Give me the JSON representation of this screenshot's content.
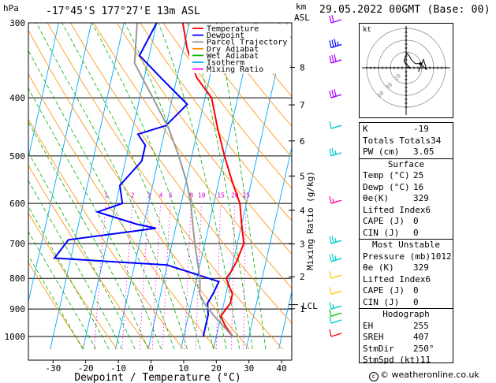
{
  "header": {
    "station": "-17°45'S 177°27'E 13m ASL",
    "datetime": "29.05.2022 00GMT (Base: 00)",
    "p_unit": "hPa",
    "km_unit_line1": "km",
    "km_unit_line2": "ASL"
  },
  "axes": {
    "xlabel": "Dewpoint / Temperature (°C)",
    "ylabel": "Mixing Ratio (g/kg)",
    "x_ticks": [
      -30,
      -20,
      -10,
      0,
      10,
      20,
      30,
      40
    ],
    "p_ticks": [
      300,
      400,
      500,
      600,
      700,
      800,
      900,
      1000
    ],
    "km_ticks": [
      {
        "km": 8,
        "p": 356
      },
      {
        "km": 7,
        "p": 411
      },
      {
        "km": 6,
        "p": 472
      },
      {
        "km": 5,
        "p": 540
      },
      {
        "km": 4,
        "p": 616
      },
      {
        "km": 3,
        "p": 701
      },
      {
        "km": 2,
        "p": 795
      },
      {
        "km": 1,
        "p": 899
      }
    ],
    "lcl_label": "LCL",
    "lcl_p": 885,
    "mixing_ratio_labels": [
      "1",
      "2",
      "3",
      "4",
      "5",
      "8",
      "10",
      "15",
      "20",
      "25"
    ],
    "mixing_ratio_values": [
      1,
      2,
      3,
      4,
      5,
      8,
      10,
      15,
      20,
      25
    ],
    "label_p": 590
  },
  "legend": [
    {
      "label": "Temperature",
      "color": "#ff0000"
    },
    {
      "label": "Dewpoint",
      "color": "#0000ff"
    },
    {
      "label": "Parcel Trajectory",
      "color": "#999999"
    },
    {
      "label": "Dry Adiabat",
      "color": "#ff8c00"
    },
    {
      "label": "Wet Adiabat",
      "color": "#00b000"
    },
    {
      "label": "Isotherm",
      "color": "#00aaff"
    },
    {
      "label": "Mixing Ratio",
      "color": "#ff00ff"
    }
  ],
  "chart_data": {
    "type": "line",
    "title": "Skew-T log-P diagram",
    "xlim": [
      -35,
      42
    ],
    "ylim": [
      1050,
      300
    ],
    "series": [
      {
        "name": "Temperature",
        "color": "#ff0000",
        "points": [
          [
            25,
            1000
          ],
          [
            22,
            960
          ],
          [
            20,
            925
          ],
          [
            22,
            880
          ],
          [
            22,
            850
          ],
          [
            19,
            800
          ],
          [
            20,
            780
          ],
          [
            21,
            750
          ],
          [
            22,
            700
          ],
          [
            20,
            650
          ],
          [
            18,
            600
          ],
          [
            14,
            550
          ],
          [
            10,
            500
          ],
          [
            6,
            450
          ],
          [
            2,
            400
          ],
          [
            -4,
            370
          ],
          [
            -9,
            330
          ],
          [
            -12,
            300
          ]
        ]
      },
      {
        "name": "Dewpoint",
        "color": "#0000ff",
        "points": [
          [
            16,
            1000
          ],
          [
            16,
            960
          ],
          [
            16,
            920
          ],
          [
            15,
            880
          ],
          [
            16,
            850
          ],
          [
            17,
            810
          ],
          [
            0,
            760
          ],
          [
            -35,
            740
          ],
          [
            -32,
            690
          ],
          [
            -6,
            660
          ],
          [
            -12,
            650
          ],
          [
            -25,
            620
          ],
          [
            -18,
            600
          ],
          [
            -20,
            560
          ],
          [
            -15,
            510
          ],
          [
            -15,
            480
          ],
          [
            -18,
            460
          ],
          [
            -10,
            445
          ],
          [
            -5,
            410
          ],
          [
            -15,
            370
          ],
          [
            -23,
            340
          ],
          [
            -20,
            300
          ]
        ]
      },
      {
        "name": "Parcel Trajectory",
        "color": "#999999",
        "points": [
          [
            25,
            1000
          ],
          [
            18,
            925
          ],
          [
            14,
            880
          ],
          [
            12,
            850
          ],
          [
            11,
            800
          ],
          [
            9,
            750
          ],
          [
            7,
            700
          ],
          [
            5,
            650
          ],
          [
            3,
            600
          ],
          [
            0,
            550
          ],
          [
            -4,
            500
          ],
          [
            -9,
            450
          ],
          [
            -16,
            400
          ],
          [
            -24,
            350
          ],
          [
            -26,
            300
          ]
        ]
      }
    ]
  },
  "wind_barbs": [
    {
      "p": 1000,
      "color": "#ff0000",
      "speed": 10
    },
    {
      "p": 950,
      "color": "#00cccc",
      "speed": 10
    },
    {
      "p": 925,
      "color": "#00cc00",
      "speed": 10
    },
    {
      "p": 900,
      "color": "#00cccc",
      "speed": 5
    },
    {
      "p": 850,
      "color": "#ffcc00",
      "speed": 10
    },
    {
      "p": 800,
      "color": "#ffcc00",
      "speed": 10
    },
    {
      "p": 750,
      "color": "#00cccc",
      "speed": 15
    },
    {
      "p": 700,
      "color": "#00cccc",
      "speed": 15
    },
    {
      "p": 600,
      "color": "#ff00aa",
      "speed": 5
    },
    {
      "p": 500,
      "color": "#00cccc",
      "speed": 15
    },
    {
      "p": 450,
      "color": "#00cccc",
      "speed": 10
    },
    {
      "p": 400,
      "color": "#aa00ff",
      "speed": 30
    },
    {
      "p": 350,
      "color": "#aa00ff",
      "speed": 30
    },
    {
      "p": 330,
      "color": "#0000ff",
      "speed": 25
    },
    {
      "p": 300,
      "color": "#aa00ff",
      "speed": 20
    }
  ],
  "hodograph": {
    "unit": "kt",
    "ring_labels": [
      "20",
      "40",
      "60"
    ],
    "trace": [
      [
        0,
        0
      ],
      [
        2,
        1
      ],
      [
        4,
        -1
      ],
      [
        1,
        3
      ],
      [
        -2,
        6
      ],
      [
        -1,
        10
      ],
      [
        1,
        14
      ],
      [
        3,
        12
      ],
      [
        5,
        8
      ],
      [
        9,
        4
      ],
      [
        14,
        4
      ],
      [
        20,
        -2
      ],
      [
        17,
        8
      ],
      [
        12,
        -4
      ]
    ]
  },
  "indices": [
    {
      "label": "K",
      "value": "-19"
    },
    {
      "label": "Totals Totals",
      "value": "34"
    },
    {
      "label": "PW (cm)",
      "value": "3.05"
    }
  ],
  "surface": {
    "title": "Surface",
    "rows": [
      {
        "label": "Temp (°C)",
        "value": "25"
      },
      {
        "label": "Dewp (°C)",
        "value": "16"
      },
      {
        "label": "θe(K)",
        "value": "329"
      },
      {
        "label": "Lifted Index",
        "value": "6"
      },
      {
        "label": "CAPE (J)",
        "value": "0"
      },
      {
        "label": "CIN (J)",
        "value": "0"
      }
    ]
  },
  "most_unstable": {
    "title": "Most Unstable",
    "rows": [
      {
        "label": "Pressure (mb)",
        "value": "1012"
      },
      {
        "label": "θe (K)",
        "value": "329"
      },
      {
        "label": "Lifted Index",
        "value": "6"
      },
      {
        "label": "CAPE (J)",
        "value": "0"
      },
      {
        "label": "CIN (J)",
        "value": "0"
      }
    ]
  },
  "hodograph_table": {
    "title": "Hodograph",
    "rows": [
      {
        "label": "EH",
        "value": "255"
      },
      {
        "label": "SREH",
        "value": "407"
      },
      {
        "label": "StmDir",
        "value": "250°"
      },
      {
        "label": "StmSpd (kt)",
        "value": "11"
      }
    ]
  },
  "credit": "© weatheronline.co.uk"
}
